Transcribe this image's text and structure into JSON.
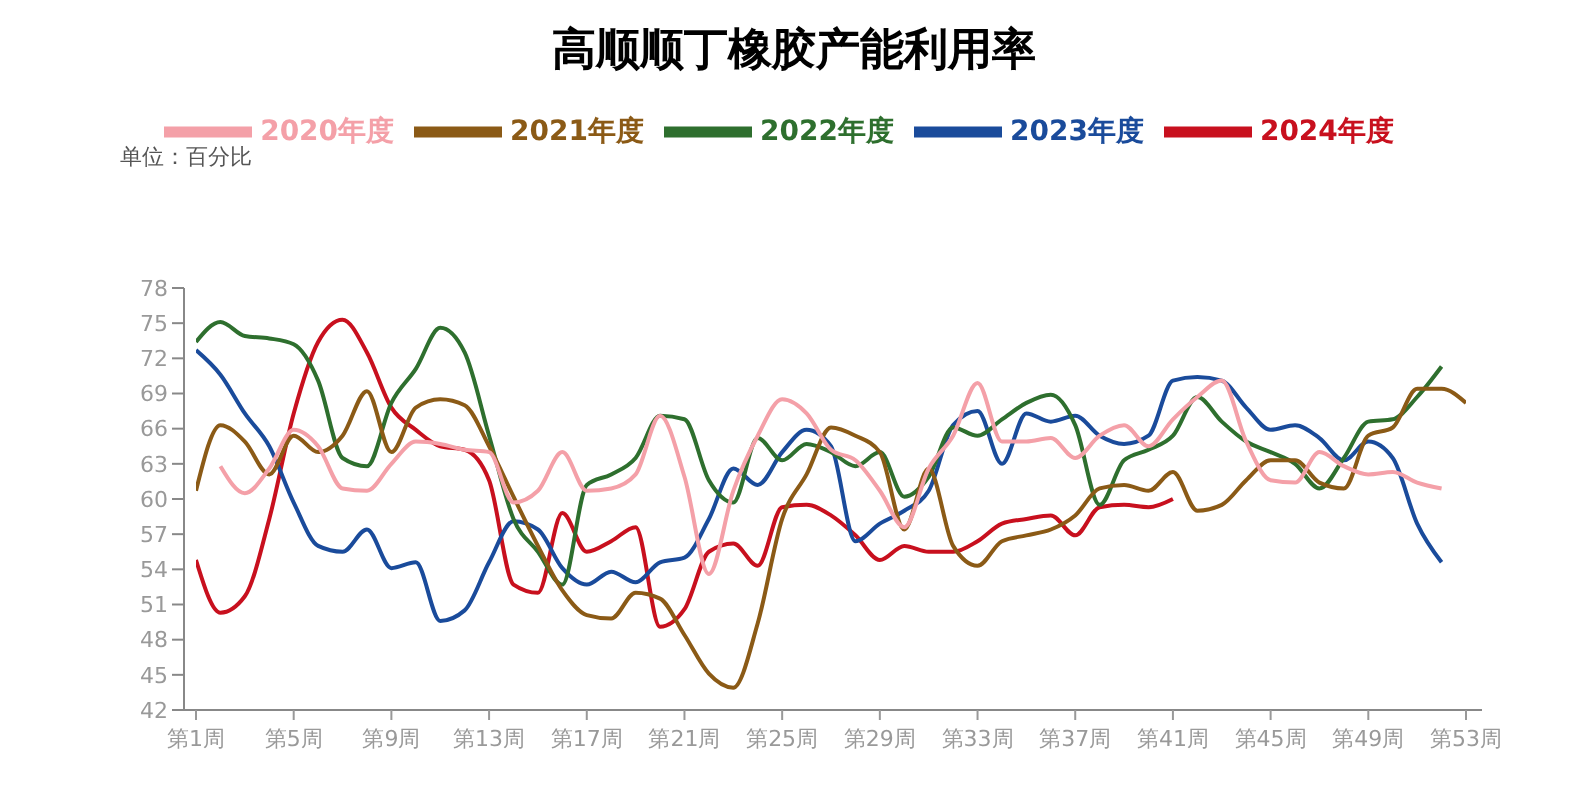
{
  "chart_data": {
    "type": "line",
    "title": "高顺顺丁橡胶产能利用率",
    "annotations": [
      "单位：百分比"
    ],
    "categories": [
      "第1周",
      null,
      null,
      null,
      "第5周",
      null,
      null,
      null,
      "第9周",
      null,
      null,
      null,
      "第13周",
      null,
      null,
      null,
      "第17周",
      null,
      null,
      null,
      "第21周",
      null,
      null,
      null,
      "第25周",
      null,
      null,
      null,
      "第29周",
      null,
      null,
      null,
      "第33周",
      null,
      null,
      null,
      "第37周",
      null,
      null,
      null,
      "第41周",
      null,
      null,
      null,
      "第45周",
      null,
      null,
      null,
      "第49周",
      null,
      null,
      null,
      "第53周"
    ],
    "ylim": [
      42,
      78
    ],
    "yticks": [
      42,
      45,
      48,
      51,
      54,
      57,
      60,
      63,
      66,
      69,
      72,
      75,
      78
    ],
    "grid": false,
    "legend": "top",
    "marker": "none",
    "line_style": "solid",
    "series": [
      {
        "name": "2024年度",
        "color": "#c8101e",
        "values": [
          54.8,
          50.3,
          51.7,
          58.3,
          67.3,
          73.4,
          75.3,
          72.5,
          67.8,
          65.9,
          64.5,
          64.2,
          61.6,
          52.7,
          52,
          58.8,
          55.5,
          56.4,
          57.6,
          49.1,
          50.6,
          55.5,
          56.2,
          54.3,
          59.3,
          59.5,
          58.6,
          56.9,
          54.8,
          56,
          55.5,
          55.5,
          56.4,
          57.9,
          58.3,
          58.6,
          56.9,
          59.3,
          59.5,
          59.3,
          60,
          null,
          null,
          null,
          null,
          null,
          null,
          null,
          null,
          null,
          null,
          null,
          null
        ]
      },
      {
        "name": "2023年度",
        "color": "#1a4b9b",
        "values": [
          72.7,
          70.6,
          67.3,
          64.5,
          59.7,
          56,
          55.5,
          57.4,
          54.1,
          54.6,
          49.6,
          50.5,
          54.6,
          58.1,
          57.4,
          54.1,
          52.7,
          53.8,
          52.9,
          54.6,
          55,
          58.3,
          62.6,
          61.2,
          64,
          65.9,
          64.5,
          56.4,
          57.9,
          59,
          60.7,
          66.3,
          67.5,
          63,
          67.3,
          66.6,
          67.1,
          65.4,
          64.7,
          65.4,
          70.1,
          70.4,
          70.1,
          67.8,
          65.9,
          66.3,
          65.2,
          63.3,
          64.9,
          63.5,
          57.9,
          54.6,
          null
        ]
      },
      {
        "name": "2022年度",
        "color": "#2e6f2e",
        "values": [
          73.4,
          75.1,
          73.9,
          73.7,
          73.2,
          70.1,
          63.5,
          62.8,
          68.2,
          71.1,
          74.6,
          72.5,
          65.4,
          58.3,
          55.5,
          52.7,
          61.2,
          62.1,
          63.5,
          67.1,
          66.8,
          61.6,
          59.7,
          65.2,
          63.3,
          64.7,
          64,
          62.8,
          64,
          60.2,
          61.9,
          66.1,
          65.4,
          66.8,
          68.2,
          68.9,
          66.3,
          59.5,
          63.3,
          64.2,
          65.4,
          68.7,
          66.6,
          64.9,
          64,
          63,
          60.9,
          63.5,
          66.6,
          66.8,
          68.7,
          71.3,
          null
        ]
      },
      {
        "name": "2021年度",
        "color": "#8b5a16",
        "values": [
          60.7,
          66.3,
          64.9,
          62.1,
          65.4,
          64,
          65.4,
          69.2,
          64,
          67.8,
          68.5,
          68,
          64.5,
          60.2,
          56,
          52.2,
          50.1,
          49.8,
          52,
          51.5,
          48.4,
          45.1,
          43.9,
          49.4,
          58.3,
          62.1,
          66.1,
          65.4,
          64,
          57.4,
          62.6,
          56,
          54.3,
          56.4,
          56.9,
          57.4,
          58.6,
          60.9,
          61.2,
          60.7,
          62.3,
          59,
          59.5,
          61.6,
          63.3,
          63.3,
          61.4,
          60.9,
          65.4,
          66.1,
          69.4,
          69.4,
          68.2
        ]
      },
      {
        "name": "2020年度",
        "color": "#f4a0a8",
        "values": [
          null,
          62.8,
          60.5,
          62.6,
          65.9,
          64.5,
          60.9,
          60.7,
          63,
          64.9,
          64.7,
          64.2,
          64,
          59.7,
          60.7,
          64,
          60.7,
          60.9,
          62.1,
          67.1,
          61.9,
          53.6,
          60.7,
          65.4,
          68.5,
          67.3,
          64.2,
          63.3,
          60.7,
          57.6,
          62.6,
          65.4,
          69.9,
          64.9,
          64.9,
          65.2,
          63.5,
          65.4,
          66.3,
          64.5,
          66.8,
          68.7,
          70.1,
          64.9,
          61.6,
          61.4,
          64,
          62.8,
          62.1,
          62.3,
          61.4,
          60.9,
          null
        ]
      }
    ]
  }
}
